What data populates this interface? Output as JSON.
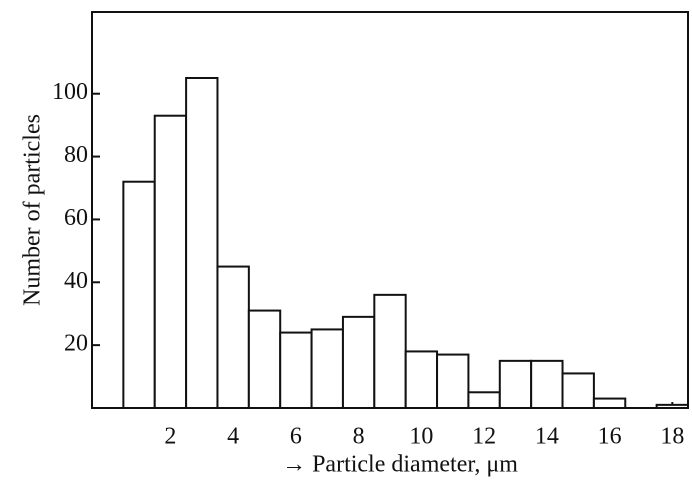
{
  "chart_data": {
    "type": "histogram",
    "xlabel": "→ Particle diameter, μm",
    "ylabel": "Number of particles",
    "bins": [
      0.5,
      1.5,
      2.5,
      3.5,
      4.5,
      5.5,
      6.5,
      7.5,
      8.5,
      9.5,
      10.5,
      11.5,
      12.5,
      13.5,
      14.5,
      15.5,
      16.5,
      17.5,
      18.5
    ],
    "values": [
      72,
      93,
      105,
      45,
      31,
      24,
      25,
      29,
      36,
      18,
      17,
      5,
      15,
      15,
      11,
      3,
      0,
      1
    ],
    "color": "#ffffff",
    "xlim": [
      -0.5,
      18.5
    ],
    "ylim": [
      0,
      126
    ],
    "xticks": [
      2,
      4,
      6,
      8,
      10,
      12,
      14,
      16,
      18
    ],
    "yticks": [
      20,
      40,
      60,
      80,
      100
    ]
  }
}
